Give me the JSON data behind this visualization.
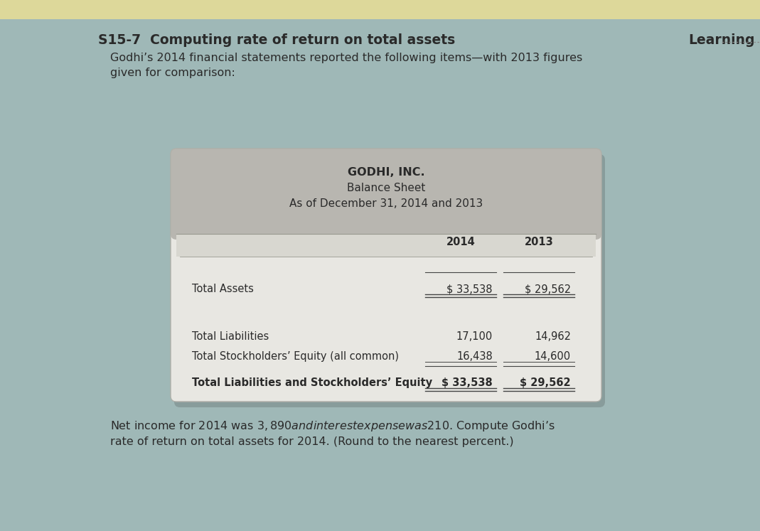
{
  "page_bg_color": "#9fb8b7",
  "top_bar_color": "#ddd89a",
  "main_title": "S15-7  Computing rate of return on total assets",
  "learning_text": "Learning",
  "intro_line1": "Godhi’s 2014 financial statements reported the following items—with 2013 figures",
  "intro_line2": "given for comparison:",
  "card_bg_color": "#d4d3cc",
  "card_body_color": "#e8e7e2",
  "card_header_bg": "#b8b6b0",
  "company_name": "GODHI, INC.",
  "statement_title": "Balance Sheet",
  "statement_subtitle": "As of December 31, 2014 and 2013",
  "col_2014": "2014",
  "col_2013": "2013",
  "rows": [
    {
      "label": "Total Assets",
      "val_2014": "$ 33,538",
      "val_2013": "$ 29,562",
      "bold": false,
      "double_underline": true,
      "pre_line": true,
      "gap_after": true
    },
    {
      "label": "Total Liabilities",
      "val_2014": "17,100",
      "val_2013": "14,962",
      "bold": false,
      "double_underline": false,
      "pre_line": false,
      "gap_after": false
    },
    {
      "label": "Total Stockholders’ Equity (all common)",
      "val_2014": "16,438",
      "val_2013": "14,600",
      "bold": false,
      "double_underline": false,
      "pre_line": false,
      "gap_after": false
    },
    {
      "label": "Total Liabilities and Stockholders’ Equity",
      "val_2014": "$ 33,538",
      "val_2013": "$ 29,562",
      "bold": true,
      "double_underline": true,
      "pre_line": true,
      "gap_after": false
    }
  ],
  "footer_line1": "Net income for 2014 was $3,890 and interest expense was $210. Compute Godhi’s",
  "footer_line2": "rate of return on total assets for 2014. (Round to the nearest percent.)",
  "dark_text": "#2a2a2a",
  "line_color": "#444444"
}
